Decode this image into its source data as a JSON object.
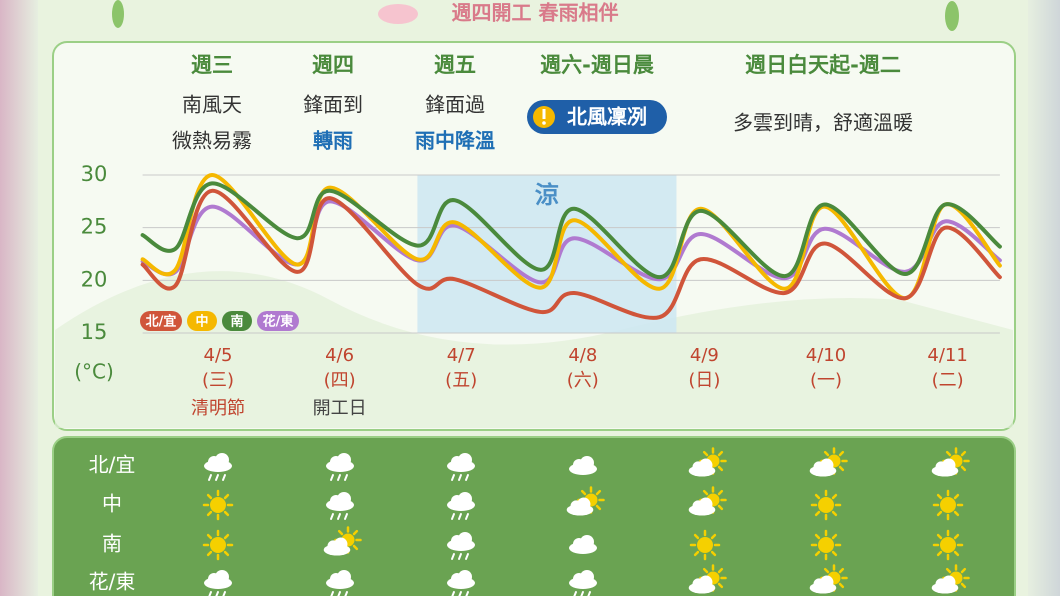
{
  "header": {
    "title": "週四開工 春雨相伴"
  },
  "outlook": [
    {
      "day": "週三",
      "lines": [
        {
          "text": "南風天"
        },
        {
          "text": "微熱易霧"
        }
      ]
    },
    {
      "day": "週四",
      "lines": [
        {
          "text": "鋒面到"
        },
        {
          "text": "轉雨",
          "color": "#1f6fb5"
        }
      ]
    },
    {
      "day": "週五",
      "lines": [
        {
          "text": "鋒面過"
        },
        {
          "text": "雨中降溫",
          "color": "#1f6fb5"
        }
      ]
    },
    {
      "day": "週六-週日晨",
      "badge": "北風凜冽"
    },
    {
      "day": "週日白天起-週二",
      "lines": [
        {
          "text": "多雲到晴，舒適溫暖"
        }
      ]
    }
  ],
  "chart_data": {
    "type": "line",
    "y_label": "(°C)",
    "x": [
      -0.62,
      -0.35,
      -0.05,
      0.65,
      0.92,
      1.64,
      1.95,
      2.65,
      2.93,
      3.63,
      3.97,
      4.66,
      4.99,
      5.65,
      5.98,
      6.43
    ],
    "xlim": [
      -0.62,
      6.43
    ],
    "xticks": [
      {
        "value": 0,
        "label": "4/5"
      },
      {
        "value": 1,
        "label": "4/6"
      },
      {
        "value": 2,
        "label": "4/7"
      },
      {
        "value": 3,
        "label": "4/8"
      },
      {
        "value": 4,
        "label": "4/9"
      },
      {
        "value": 5,
        "label": "4/10"
      },
      {
        "value": 6,
        "label": "4/11"
      }
    ],
    "weekdays": [
      "(三)",
      "(四)",
      "(五)",
      "(六)",
      "(日)",
      "(一)",
      "(二)"
    ],
    "notes": [
      "清明節",
      "開工日",
      null,
      null,
      null,
      null,
      null
    ],
    "ylim": [
      15,
      30
    ],
    "yticks": [
      30,
      25,
      20,
      15
    ],
    "grid": true,
    "shade": {
      "xlim": [
        1.64,
        3.77
      ],
      "label": "涼"
    },
    "series": [
      {
        "name": "北/宜",
        "color": "#d0553a",
        "values": [
          21.5,
          19.5,
          28.5,
          20.8,
          27.8,
          19.6,
          20.1,
          17,
          18.8,
          16.5,
          22,
          18.8,
          23.5,
          18.3,
          25,
          20.3
        ]
      },
      {
        "name": "中",
        "color": "#f5b800",
        "values": [
          22,
          21,
          30,
          21.5,
          28.8,
          22,
          25.5,
          19.3,
          25.7,
          19.2,
          26.8,
          19.2,
          27,
          18.3,
          27.2,
          21.4
        ]
      },
      {
        "name": "南",
        "color": "#4a8a3c",
        "values": [
          24.3,
          23,
          29.2,
          24,
          28.5,
          23.3,
          27.6,
          21,
          26.8,
          20.3,
          26.6,
          20.4,
          27.2,
          20.6,
          27.2,
          23.2
        ]
      },
      {
        "name": "花/東",
        "color": "#b07ad0",
        "values": [
          21.8,
          20.8,
          27,
          21.5,
          27.5,
          21.9,
          25.2,
          19.8,
          24,
          20.1,
          24.4,
          20.2,
          24.9,
          20.8,
          25.6,
          21.9
        ]
      }
    ]
  },
  "table": {
    "rows": [
      {
        "region": "北/宜",
        "icons": [
          "rain",
          "rain",
          "rain",
          "cloud",
          "partly",
          "partly",
          "partly"
        ]
      },
      {
        "region": "中",
        "icons": [
          "sun",
          "rain",
          "rain",
          "partly",
          "partly",
          "sun",
          "sun"
        ]
      },
      {
        "region": "南",
        "icons": [
          "sun",
          "partly",
          "rain",
          "cloud",
          "sun",
          "sun",
          "sun"
        ]
      },
      {
        "region": "花/東",
        "icons": [
          "rain",
          "rain",
          "rain",
          "rain",
          "partly",
          "partly",
          "partly"
        ]
      }
    ]
  }
}
